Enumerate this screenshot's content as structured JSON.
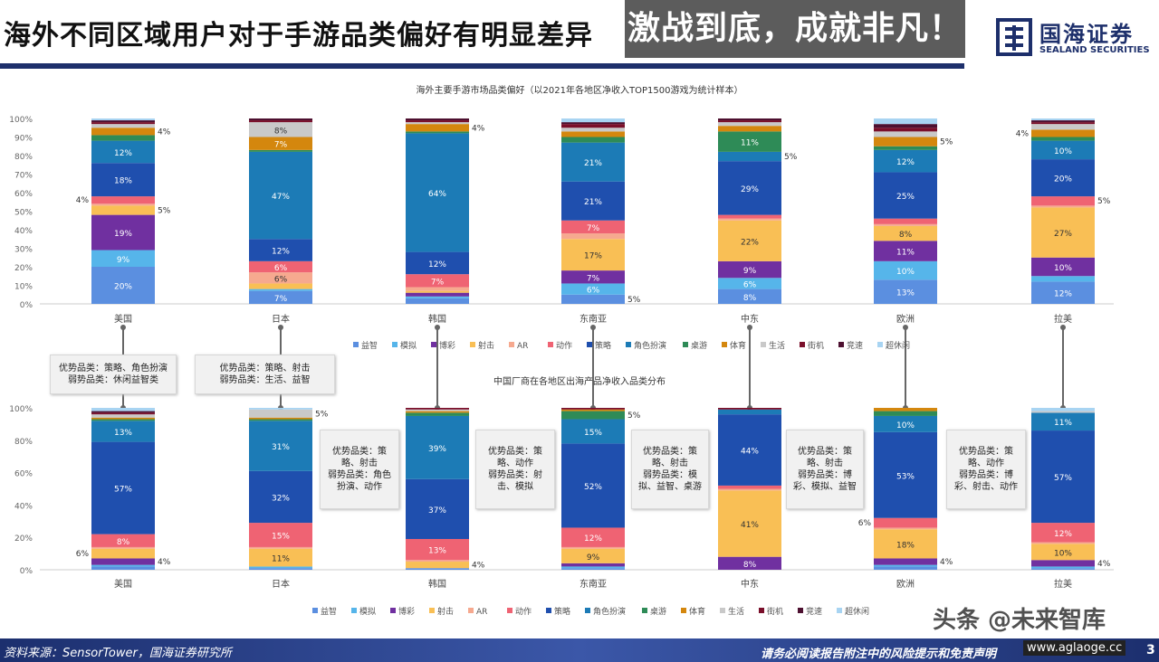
{
  "header": {
    "title": "海外不同区域用户对于手游品类偏好有明显差异",
    "logo_cn": "国海证券",
    "logo_en": "SEALAND SECURITIES"
  },
  "footer": {
    "source": "资料来源：SensorTower，国海证券研究所",
    "disclaimer": "请务必阅读报告附注中的风险提示和免责声明",
    "page": "3"
  },
  "watermark": {
    "text": "头条 @未来智库",
    "url": "www.aglaoge.cc"
  },
  "overlay": {
    "text": "激战到底，成就非凡！"
  },
  "chart_data": [
    {
      "type": "bar",
      "stacked": true,
      "title": "海外主要手游市场品类偏好（以2021年各地区净收入TOP1500游戏为统计样本）",
      "categories": [
        "美国",
        "日本",
        "韩国",
        "东南亚",
        "中东",
        "欧洲",
        "拉美"
      ],
      "ylim": [
        0,
        100
      ],
      "yticks": [
        "0%",
        "10%",
        "20%",
        "30%",
        "40%",
        "50%",
        "60%",
        "70%",
        "80%",
        "90%",
        "100%"
      ],
      "legend": "bottom",
      "series_names": [
        "益智",
        "模拟",
        "博彩",
        "射击",
        "AR",
        "动作",
        "策略",
        "角色扮演",
        "桌游",
        "体育",
        "生活",
        "街机",
        "竞速",
        "超休闲"
      ],
      "colors": [
        "#5b8fe0",
        "#56b5ea",
        "#7030a0",
        "#f9bf55",
        "#f6a98f",
        "#ef6373",
        "#1f4fae",
        "#1c7bb6",
        "#2e8b57",
        "#d4870e",
        "#c9c9c9",
        "#7a0f2a",
        "#4d1030",
        "#a8d4f2"
      ],
      "values": [
        [
          20,
          9,
          19,
          5,
          1,
          4,
          18,
          12,
          3,
          4,
          2,
          1,
          1,
          1
        ],
        [
          7,
          1,
          0,
          3,
          6,
          6,
          12,
          47,
          1,
          7,
          8,
          1,
          1,
          0
        ],
        [
          3,
          1,
          2,
          1,
          2,
          7,
          12,
          64,
          1,
          4,
          1,
          1,
          1,
          0
        ],
        [
          5,
          6,
          7,
          17,
          3,
          7,
          21,
          21,
          3,
          3,
          2,
          2,
          1,
          2
        ],
        [
          8,
          6,
          9,
          22,
          1,
          2,
          29,
          5,
          11,
          3,
          2,
          1,
          1,
          0
        ],
        [
          13,
          10,
          11,
          8,
          1,
          3,
          25,
          12,
          2,
          5,
          3,
          2,
          2,
          3
        ],
        [
          12,
          3,
          10,
          27,
          1,
          5,
          20,
          10,
          2,
          4,
          3,
          1,
          1,
          1
        ]
      ]
    },
    {
      "type": "bar",
      "stacked": true,
      "title": "中国厂商在各地区出海产品净收入品类分布",
      "categories": [
        "美国",
        "日本",
        "韩国",
        "东南亚",
        "中东",
        "欧洲",
        "拉美"
      ],
      "ylim": [
        0,
        100
      ],
      "yticks": [
        "0%",
        "20%",
        "40%",
        "60%",
        "80%",
        "100%"
      ],
      "legend": "bottom",
      "series_names": [
        "益智",
        "模拟",
        "博彩",
        "射击",
        "AR",
        "动作",
        "策略",
        "角色扮演",
        "桌游",
        "体育",
        "生活",
        "街机",
        "竞速",
        "超休闲"
      ],
      "colors": [
        "#5b8fe0",
        "#56b5ea",
        "#7030a0",
        "#f9bf55",
        "#f6a98f",
        "#ef6373",
        "#1f4fae",
        "#1c7bb6",
        "#2e8b57",
        "#d4870e",
        "#c9c9c9",
        "#7a0f2a",
        "#4d1030",
        "#a8d4f2"
      ],
      "values": [
        [
          2,
          1,
          4,
          6,
          1,
          8,
          57,
          13,
          1,
          1,
          2,
          1,
          1,
          2
        ],
        [
          1,
          1,
          0,
          11,
          1,
          15,
          32,
          31,
          1,
          1,
          5,
          0,
          0,
          1
        ],
        [
          1,
          0,
          0,
          4,
          1,
          13,
          37,
          39,
          2,
          1,
          1,
          1,
          0,
          0
        ],
        [
          1,
          1,
          2,
          9,
          1,
          12,
          52,
          15,
          5,
          1,
          0,
          1,
          0,
          0
        ],
        [
          0,
          0,
          8,
          41,
          1,
          2,
          44,
          3,
          0,
          0,
          0,
          1,
          0,
          0
        ],
        [
          2,
          1,
          4,
          18,
          1,
          6,
          53,
          10,
          3,
          2,
          0,
          0,
          0,
          0
        ],
        [
          1,
          1,
          4,
          10,
          1,
          12,
          57,
          11,
          0,
          0,
          1,
          0,
          0,
          2
        ]
      ]
    }
  ],
  "callouts": [
    "优势品类：策略、角色扮演\n弱势品类：休闲益智类",
    "优势品类：策略、射击\n弱势品类：生活、益智",
    "优势品类：策略、射击\n弱势品类：角色扮演、动作",
    "优势品类：策略、动作\n弱势品类：射击、模拟",
    "优势品类：策略、射击\n弱势品类：模拟、益智、桌游",
    "优势品类：策略、射击\n弱势品类：博彩、模拟、益智",
    "优势品类：策略、动作\n弱势品类：博彩、射击、动作"
  ]
}
